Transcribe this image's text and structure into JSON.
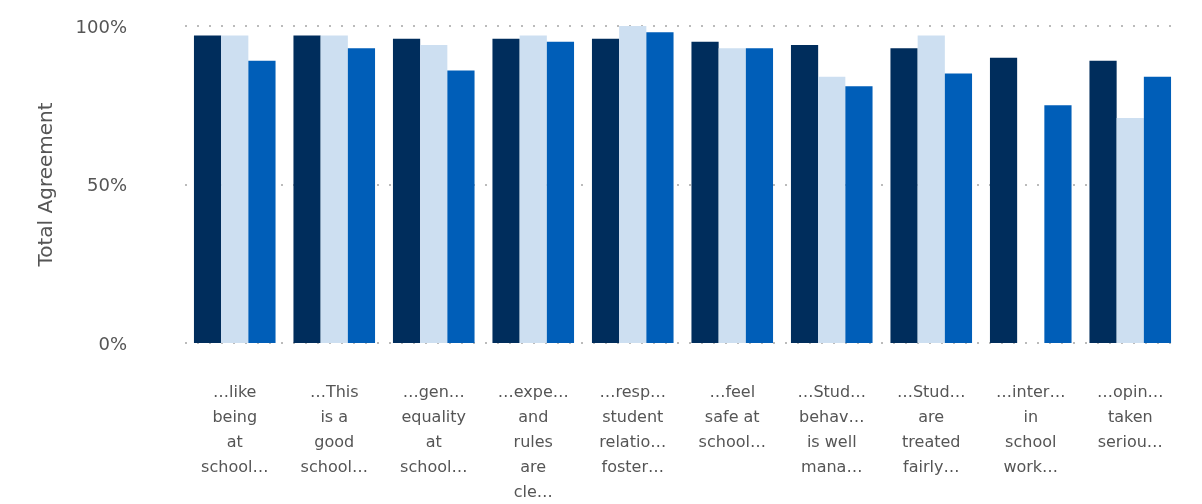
{
  "chart_data": {
    "type": "bar",
    "ylabel": "Total Agreement",
    "categories": [
      "…like being at school…",
      "…This is a good school…",
      "…gen… equality at school…",
      "…expe… and rules are cle…",
      "…resp… student relatio… foster…",
      "…feel safe at school…",
      "…Stud… behav… is well mana…",
      "…Stud… are treated fairly…",
      "…inter… in school work…",
      "…opin… taken seriou…"
    ],
    "series": [
      {
        "color": "#002d5c",
        "values": [
          97,
          97,
          96,
          96,
          96,
          95,
          94,
          93,
          90,
          89
        ]
      },
      {
        "color": "#cddff1",
        "values": [
          97,
          97,
          94,
          97,
          100,
          93,
          84,
          97,
          null,
          71
        ]
      },
      {
        "color": "#005eb8",
        "values": [
          89,
          93,
          86,
          95,
          98,
          93,
          81,
          85,
          75,
          84
        ]
      }
    ],
    "ylim": [
      0,
      100
    ],
    "yticks": [
      {
        "value": 0,
        "label": "0%"
      },
      {
        "value": 50,
        "label": "50%"
      },
      {
        "value": 100,
        "label": "100%"
      }
    ],
    "grid": "y"
  }
}
